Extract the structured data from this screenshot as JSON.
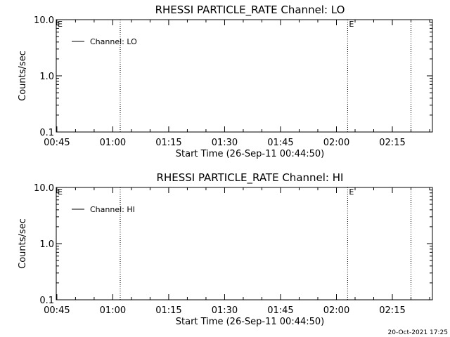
{
  "chart_data": [
    {
      "type": "line",
      "title": "RHESSI PARTICLE_RATE Channel: LO",
      "ylabel": "Counts/sec",
      "xlabel": "Start Time (26-Sep-11 00:44:50)",
      "yscale": "log",
      "ylim": [
        0.1,
        10.0
      ],
      "ytick_labels": [
        "10.0",
        "1.0",
        "0.1"
      ],
      "xlim": [
        "00:45",
        "02:25"
      ],
      "xtick_labels": [
        "00:45",
        "01:00",
        "01:15",
        "01:30",
        "01:45",
        "02:00",
        "02:15"
      ],
      "legend_position": "top-left",
      "series": [
        {
          "name": "Channel: LO",
          "x": [],
          "values": [],
          "color": "#000000"
        }
      ],
      "vertical_markers": [
        {
          "time": "01:02",
          "style": "dotted"
        },
        {
          "time": "02:03",
          "style": "dotted",
          "label": "E"
        },
        {
          "time": "02:20",
          "style": "dotted"
        }
      ],
      "corner_flag": "E"
    },
    {
      "type": "line",
      "title": "RHESSI PARTICLE_RATE Channel: HI",
      "ylabel": "Counts/sec",
      "xlabel": "Start Time (26-Sep-11 00:44:50)",
      "yscale": "log",
      "ylim": [
        0.1,
        10.0
      ],
      "ytick_labels": [
        "10.0",
        "1.0",
        "0.1"
      ],
      "xlim": [
        "00:45",
        "02:25"
      ],
      "xtick_labels": [
        "00:45",
        "01:00",
        "01:15",
        "01:30",
        "01:45",
        "02:00",
        "02:15"
      ],
      "legend_position": "top-left",
      "series": [
        {
          "name": "Channel: HI",
          "x": [],
          "values": [],
          "color": "#000000"
        }
      ],
      "vertical_markers": [
        {
          "time": "01:02",
          "style": "dotted"
        },
        {
          "time": "02:03",
          "style": "dotted",
          "label": "E"
        },
        {
          "time": "02:20",
          "style": "dotted"
        }
      ],
      "corner_flag": "E"
    }
  ],
  "footer": {
    "timestamp": "20-Oct-2021 17:25"
  }
}
